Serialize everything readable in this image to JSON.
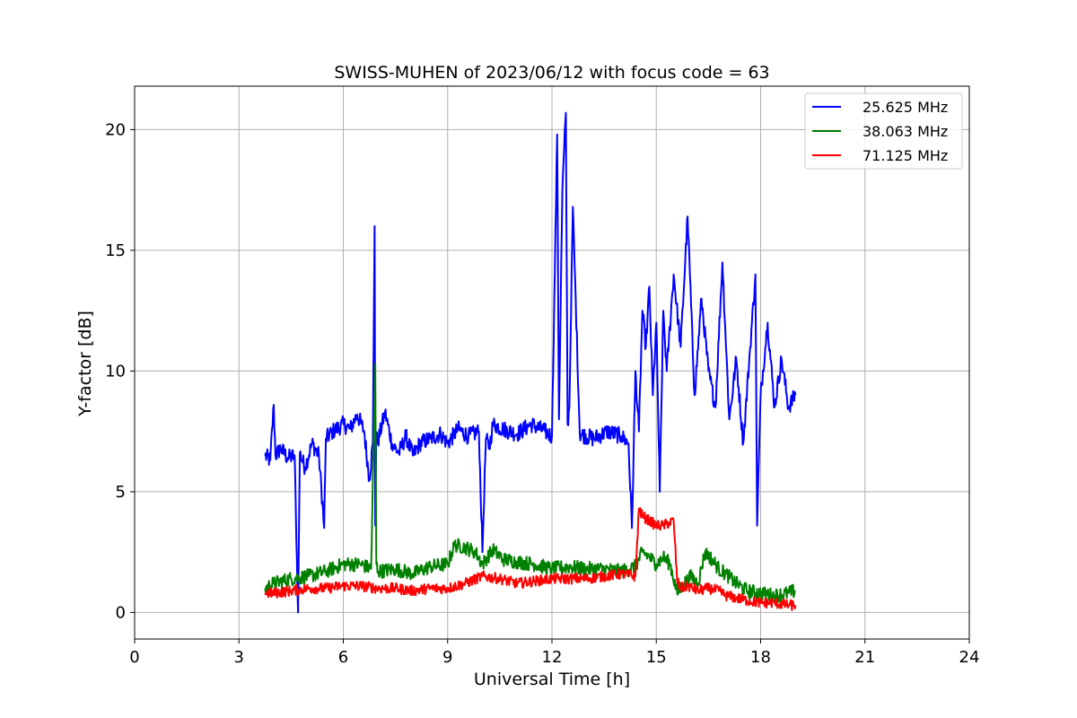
{
  "chart_data": {
    "type": "line",
    "title": "SWISS-MUHEN of 2023/06/12 with focus code = 63",
    "xlabel": "Universal Time [h]",
    "ylabel": "Y-factor [dB]",
    "xlim": [
      0,
      24
    ],
    "ylim": [
      -1.1,
      21.8
    ],
    "xticks": [
      0,
      3,
      6,
      9,
      12,
      15,
      18,
      21,
      24
    ],
    "yticks": [
      0,
      5,
      10,
      15,
      20
    ],
    "grid": true,
    "legend_position": "top-right",
    "series": [
      {
        "name": "25.625 MHz",
        "color": "#0000ff",
        "x": [
          3.75,
          3.9,
          4.0,
          4.05,
          4.2,
          4.4,
          4.6,
          4.7,
          4.75,
          4.9,
          5.1,
          5.3,
          5.45,
          5.5,
          5.7,
          6.0,
          6.2,
          6.4,
          6.6,
          6.75,
          6.85,
          6.9,
          6.92,
          6.95,
          7.0,
          7.2,
          7.4,
          7.6,
          7.8,
          8.0,
          8.2,
          8.5,
          8.8,
          9.0,
          9.3,
          9.6,
          9.9,
          10.0,
          10.1,
          10.2,
          10.3,
          10.6,
          11.0,
          11.4,
          11.8,
          12.0,
          12.15,
          12.2,
          12.3,
          12.4,
          12.45,
          12.5,
          12.6,
          12.8,
          13.2,
          13.6,
          14.0,
          14.2,
          14.3,
          14.4,
          14.5,
          14.6,
          14.7,
          14.8,
          14.9,
          15.0,
          15.1,
          15.2,
          15.3,
          15.5,
          15.7,
          15.9,
          16.1,
          16.3,
          16.5,
          16.7,
          16.9,
          17.1,
          17.3,
          17.5,
          17.7,
          17.85,
          17.9,
          18.0,
          18.2,
          18.4,
          18.6,
          18.8,
          19.0
        ],
        "y": [
          6.5,
          6.3,
          8.6,
          6.5,
          6.8,
          6.4,
          6.5,
          0.0,
          6.6,
          6.0,
          7.0,
          6.5,
          3.5,
          7.2,
          7.5,
          7.8,
          7.6,
          8.2,
          7.5,
          5.5,
          7.0,
          16.0,
          3.6,
          7.2,
          7.1,
          8.3,
          7.0,
          6.6,
          7.3,
          6.5,
          7.0,
          7.2,
          7.4,
          7.0,
          7.6,
          7.3,
          7.5,
          2.5,
          7.2,
          6.8,
          7.8,
          7.6,
          7.4,
          7.8,
          7.5,
          7.3,
          19.8,
          8.0,
          17.5,
          20.7,
          7.8,
          8.5,
          16.8,
          7.4,
          7.2,
          7.5,
          7.3,
          7.0,
          3.5,
          10.0,
          7.5,
          12.5,
          11.0,
          13.5,
          9.0,
          12.0,
          5.0,
          12.5,
          10.0,
          14.0,
          11.0,
          16.4,
          9.0,
          13.0,
          10.0,
          8.5,
          14.5,
          8.0,
          10.5,
          7.0,
          11.0,
          14.0,
          3.6,
          9.0,
          12.0,
          8.5,
          10.5,
          8.5,
          9.0
        ]
      },
      {
        "name": "38.063 MHz",
        "color": "#008000",
        "x": [
          3.75,
          4.0,
          4.5,
          5.0,
          5.5,
          6.0,
          6.5,
          6.8,
          6.92,
          6.95,
          7.0,
          7.5,
          8.0,
          8.5,
          9.0,
          9.2,
          9.5,
          9.8,
          10.0,
          10.3,
          10.6,
          11.0,
          11.5,
          12.0,
          12.5,
          13.0,
          13.5,
          14.0,
          14.4,
          14.6,
          14.8,
          15.0,
          15.2,
          15.4,
          15.6,
          15.8,
          16.0,
          16.2,
          16.4,
          16.6,
          16.8,
          17.0,
          17.3,
          17.6,
          18.0,
          18.4,
          18.8,
          19.0
        ],
        "y": [
          1.0,
          1.2,
          1.4,
          1.5,
          1.7,
          2.0,
          2.0,
          1.8,
          10.3,
          2.0,
          1.7,
          1.8,
          1.6,
          1.9,
          2.0,
          2.8,
          2.7,
          2.5,
          2.0,
          2.6,
          2.2,
          2.1,
          2.0,
          1.8,
          1.9,
          1.8,
          1.8,
          1.7,
          1.9,
          2.5,
          2.3,
          2.0,
          2.3,
          2.0,
          0.8,
          1.2,
          1.5,
          1.2,
          2.5,
          2.2,
          1.8,
          1.6,
          1.2,
          0.9,
          0.8,
          0.7,
          0.8,
          0.9
        ]
      },
      {
        "name": "71.125 MHz",
        "color": "#ff0000",
        "x": [
          3.75,
          4.0,
          4.5,
          5.0,
          5.5,
          6.0,
          6.5,
          7.0,
          7.5,
          8.0,
          8.5,
          9.0,
          9.5,
          10.0,
          10.5,
          11.0,
          11.5,
          12.0,
          12.5,
          13.0,
          13.5,
          14.0,
          14.4,
          14.5,
          14.6,
          14.8,
          15.0,
          15.2,
          15.5,
          15.6,
          15.7,
          15.9,
          16.2,
          16.5,
          16.8,
          17.0,
          17.3,
          17.6,
          18.0,
          18.4,
          18.8,
          19.0
        ],
        "y": [
          0.8,
          0.8,
          0.9,
          1.0,
          1.0,
          1.1,
          1.1,
          1.0,
          1.0,
          0.9,
          1.0,
          1.0,
          1.2,
          1.5,
          1.4,
          1.2,
          1.3,
          1.4,
          1.4,
          1.4,
          1.5,
          1.6,
          1.5,
          4.3,
          4.0,
          3.8,
          3.6,
          3.6,
          3.8,
          1.3,
          1.0,
          1.1,
          0.9,
          1.0,
          0.9,
          0.7,
          0.6,
          0.5,
          0.4,
          0.4,
          0.3,
          0.3
        ]
      }
    ]
  }
}
